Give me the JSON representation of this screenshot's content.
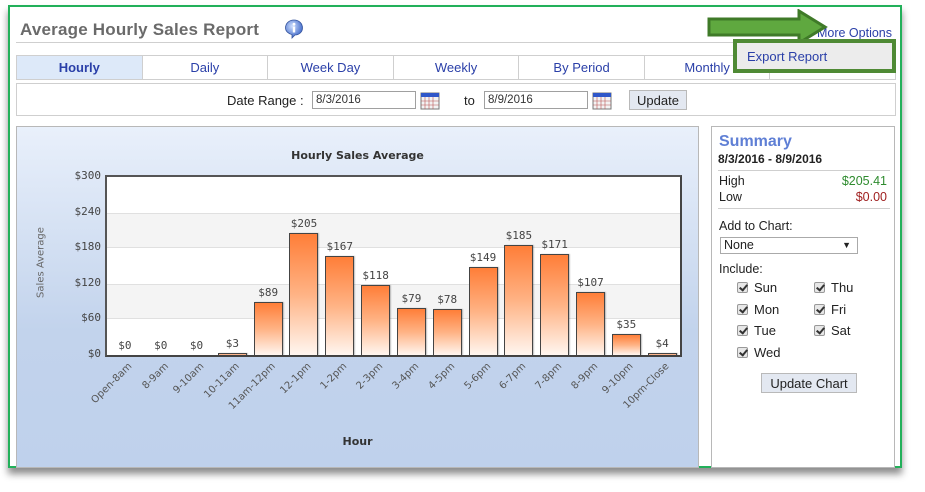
{
  "header": {
    "title": "Average Hourly Sales Report",
    "info_icon": "info-icon",
    "more_options": "More Options",
    "export_report": "Export Report"
  },
  "tabs": [
    {
      "label": "Hourly",
      "active": true
    },
    {
      "label": "Daily",
      "active": false
    },
    {
      "label": "Week Day",
      "active": false
    },
    {
      "label": "Weekly",
      "active": false
    },
    {
      "label": "By Period",
      "active": false
    },
    {
      "label": "Monthly",
      "active": false
    },
    {
      "label": "",
      "active": false
    }
  ],
  "date_range": {
    "label": "Date Range :",
    "from": "8/3/2016",
    "to_label": "to",
    "to": "8/9/2016",
    "update_label": "Update"
  },
  "chart_data": {
    "type": "bar",
    "title": "Hourly Sales Average",
    "xlabel": "Hour",
    "ylabel": "Sales Average",
    "ylim": [
      0,
      300
    ],
    "yticks": [
      "$0",
      "$60",
      "$120",
      "$180",
      "$240",
      "$300"
    ],
    "categories": [
      "Open-8am",
      "8-9am",
      "9-10am",
      "10-11am",
      "11am-12pm",
      "12-1pm",
      "1-2pm",
      "2-3pm",
      "3-4pm",
      "4-5pm",
      "5-6pm",
      "6-7pm",
      "7-8pm",
      "8-9pm",
      "9-10pm",
      "10pm-Close"
    ],
    "values": [
      0,
      0,
      0,
      3,
      89,
      205,
      167,
      118,
      79,
      78,
      149,
      185,
      171,
      107,
      35,
      4
    ],
    "value_labels": [
      "$0",
      "$0",
      "$0",
      "$3",
      "$89",
      "$205",
      "$167",
      "$118",
      "$79",
      "$78",
      "$149",
      "$185",
      "$171",
      "$107",
      "$35",
      "$4"
    ],
    "bar_color": "#ff7e38",
    "grid": true,
    "legend": "none"
  },
  "summary": {
    "title": "Summary",
    "range": "8/3/2016 - 8/9/2016",
    "high_label": "High",
    "high_value": "$205.41",
    "high_color": "#2e8b2e",
    "low_label": "Low",
    "low_value": "$0.00",
    "low_color": "#a02020",
    "add_to_chart_label": "Add to Chart:",
    "add_to_chart_value": "None",
    "include_label": "Include:",
    "days": [
      {
        "label": "Sun",
        "checked": true
      },
      {
        "label": "Mon",
        "checked": true
      },
      {
        "label": "Tue",
        "checked": true
      },
      {
        "label": "Wed",
        "checked": true
      },
      {
        "label": "Thu",
        "checked": true
      },
      {
        "label": "Fri",
        "checked": true
      },
      {
        "label": "Sat",
        "checked": true
      }
    ],
    "update_chart_label": "Update Chart"
  },
  "annotation": {
    "arrow_color": "#5fa83f",
    "highlight_color": "#4f8a35"
  }
}
